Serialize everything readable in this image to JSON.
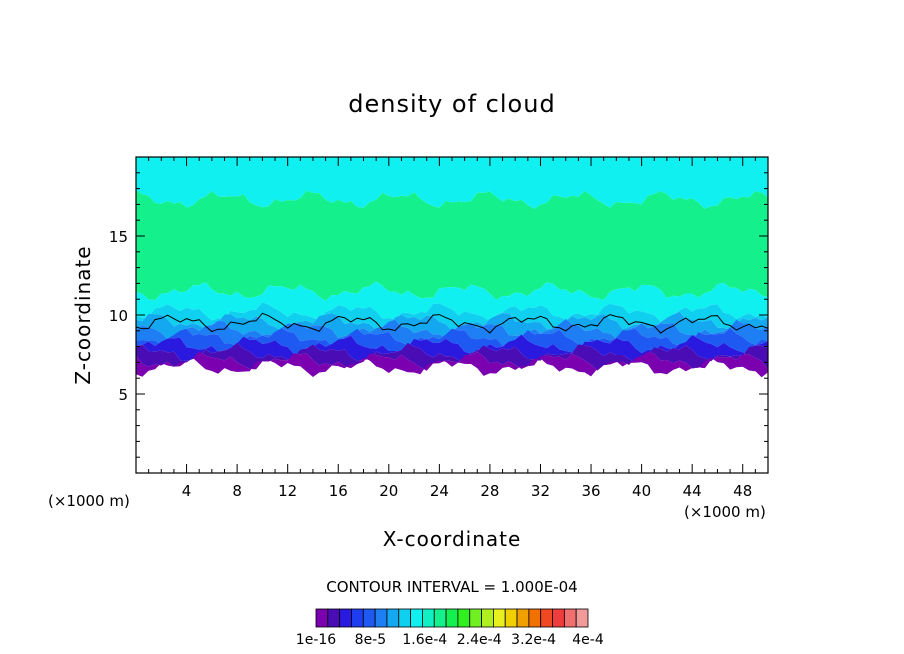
{
  "chart_data": {
    "type": "heatmap",
    "title": "density of cloud",
    "xlabel": "X-coordinate",
    "ylabel": "Z-coordinate",
    "x_unit": "(×1000 m)",
    "z_unit": "(×1000 m)",
    "xlim": [
      0,
      50
    ],
    "ylim": [
      0,
      20
    ],
    "x_ticks": [
      4,
      8,
      12,
      16,
      20,
      24,
      28,
      32,
      36,
      40,
      44,
      48
    ],
    "y_ticks": [
      5,
      10,
      15
    ],
    "contour_interval_text": "CONTOUR INTERVAL = 1.000E-04",
    "colorbar_labels": [
      "1e-16",
      "8e-5",
      "1.6e-4",
      "2.4e-4",
      "3.2e-4",
      "4e-4"
    ],
    "colorbar_colors": [
      "#7a00b0",
      "#4a0cb4",
      "#2a1ae0",
      "#1e3cf0",
      "#1e5af2",
      "#1e7ef4",
      "#14a8f0",
      "#10d0f0",
      "#10f0f0",
      "#10f0c4",
      "#14f08c",
      "#14f050",
      "#30f020",
      "#70f020",
      "#b0f020",
      "#e8f020",
      "#f0d000",
      "#f0a000",
      "#f07000",
      "#f04820",
      "#f03c3c",
      "#f07070",
      "#f09a9a"
    ],
    "bands": [
      {
        "z_top": 20.0,
        "z_bottom": 17.3,
        "color": "#10f0f0"
      },
      {
        "z_top": 17.3,
        "z_bottom": 11.5,
        "color": "#14f08c"
      },
      {
        "z_top": 11.5,
        "z_bottom": 10.2,
        "color": "#10f0f0"
      },
      {
        "z_top": 10.2,
        "z_bottom": 9.6,
        "color": "#10d0f0"
      },
      {
        "z_top": 9.6,
        "z_bottom": 9.1,
        "color": "#14a8f0"
      },
      {
        "z_top": 9.1,
        "z_bottom": 8.6,
        "color": "#1e7ef4"
      },
      {
        "z_top": 8.6,
        "z_bottom": 8.1,
        "color": "#1e5af2"
      },
      {
        "z_top": 8.1,
        "z_bottom": 7.6,
        "color": "#2a1ae0"
      },
      {
        "z_top": 7.6,
        "z_bottom": 7.1,
        "color": "#4a0cb4"
      },
      {
        "z_top": 7.1,
        "z_bottom": 6.7,
        "color": "#7a00b0"
      }
    ],
    "contour_line": {
      "color": "#000000",
      "z_level": 9.5
    }
  }
}
